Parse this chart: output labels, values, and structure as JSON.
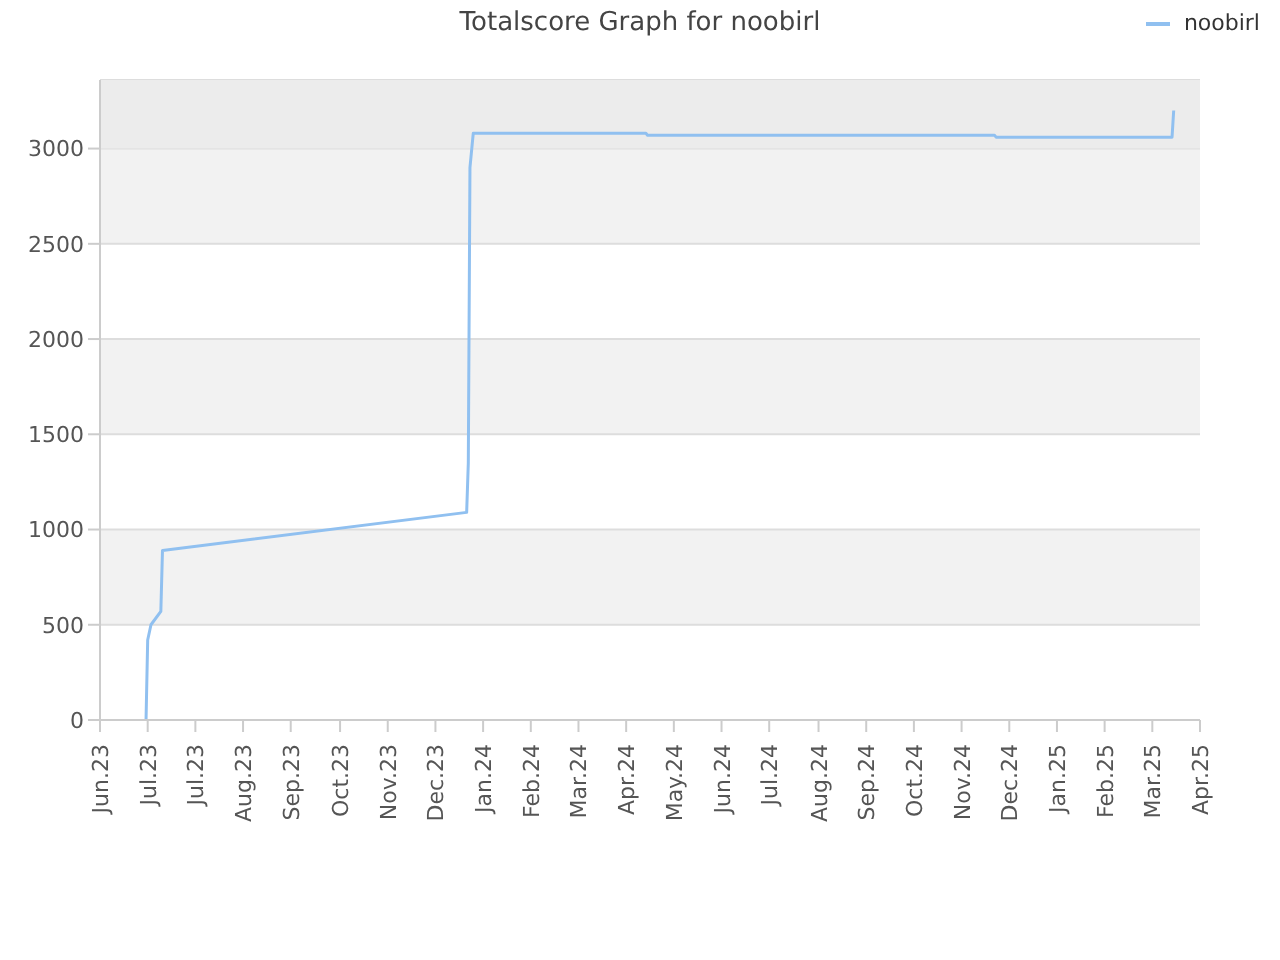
{
  "chart_data": {
    "type": "line",
    "title": "Totalscore Graph for noobirl",
    "x": [
      "2023-06-30",
      "2023-07-01",
      "2023-07-03",
      "2023-07-09",
      "2023-07-10",
      "2024-01-11",
      "2024-01-12",
      "2024-01-13",
      "2024-01-15",
      "2024-04-29",
      "2024-04-30",
      "2024-11-27",
      "2024-11-28",
      "2025-03-15",
      "2025-03-16"
    ],
    "series": [
      {
        "name": "noobirl",
        "color": "#90c0f0",
        "values": [
          0,
          420,
          500,
          570,
          890,
          1090,
          1350,
          2900,
          3080,
          3080,
          3070,
          3070,
          3060,
          3060,
          3200
        ]
      }
    ],
    "bands": [
      {
        "axis": "y",
        "from": 3000,
        "to": 3360,
        "color": "#ececec"
      }
    ],
    "xlim": [
      "2023-06-02",
      "2025-04-01"
    ],
    "xticks": [
      {
        "value": "2023-06-02",
        "label": "Jun.23"
      },
      {
        "value": "2023-07-01",
        "label": "Jul.23"
      },
      {
        "value": "2023-07-30",
        "label": "Jul.23"
      },
      {
        "value": "2023-08-28",
        "label": "Aug.23"
      },
      {
        "value": "2023-09-26",
        "label": "Sep.23"
      },
      {
        "value": "2023-10-26",
        "label": "Oct.23"
      },
      {
        "value": "2023-11-24",
        "label": "Nov.23"
      },
      {
        "value": "2023-12-23",
        "label": "Dec.23"
      },
      {
        "value": "2024-01-21",
        "label": "Jan.24"
      },
      {
        "value": "2024-02-19",
        "label": "Feb.24"
      },
      {
        "value": "2024-03-19",
        "label": "Mar.24"
      },
      {
        "value": "2024-04-17",
        "label": "Apr.24"
      },
      {
        "value": "2024-05-16",
        "label": "May.24"
      },
      {
        "value": "2024-06-14",
        "label": "Jun.24"
      },
      {
        "value": "2024-07-13",
        "label": "Jul.24"
      },
      {
        "value": "2024-08-12",
        "label": "Aug.24"
      },
      {
        "value": "2024-09-10",
        "label": "Sep.24"
      },
      {
        "value": "2024-10-09",
        "label": "Oct.24"
      },
      {
        "value": "2024-11-07",
        "label": "Nov.24"
      },
      {
        "value": "2024-12-06",
        "label": "Dec.24"
      },
      {
        "value": "2025-01-04",
        "label": "Jan.25"
      },
      {
        "value": "2025-02-02",
        "label": "Feb.25"
      },
      {
        "value": "2025-03-03",
        "label": "Mar.25"
      },
      {
        "value": "2025-04-01",
        "label": "Apr.25"
      }
    ],
    "ylim": [
      0,
      3360
    ],
    "yticks": [
      0,
      500,
      1000,
      1500,
      2000,
      2500,
      3000
    ],
    "grid": "y",
    "legend": "top right",
    "marker": "none",
    "line_style": "solid"
  }
}
